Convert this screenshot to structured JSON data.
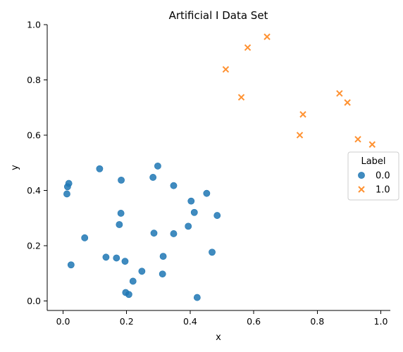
{
  "chart_data": {
    "type": "scatter",
    "title": "Artificial I Data Set",
    "xlabel": "x",
    "ylabel": "y",
    "xlim": [
      -0.05,
      1.03
    ],
    "ylim": [
      -0.035,
      1.0
    ],
    "x_ticks": [
      0.0,
      0.2,
      0.4,
      0.6,
      0.8,
      1.0
    ],
    "x_tick_labels": [
      "0.0",
      "0.2",
      "0.4",
      "0.6",
      "0.8",
      "1.0"
    ],
    "y_ticks": [
      0.0,
      0.2,
      0.4,
      0.6,
      0.8,
      1.0
    ],
    "y_tick_labels": [
      "0.0",
      "0.2",
      "0.4",
      "0.6",
      "0.8",
      "1.0"
    ],
    "grid": false,
    "legend": {
      "title": "Label",
      "placement": "right"
    },
    "series": [
      {
        "name": "0.0",
        "marker": "circle",
        "color": "#1f77b4",
        "points": [
          [
            0.018,
            0.425
          ],
          [
            0.014,
            0.413
          ],
          [
            0.012,
            0.387
          ],
          [
            0.115,
            0.478
          ],
          [
            0.183,
            0.437
          ],
          [
            0.298,
            0.488
          ],
          [
            0.283,
            0.447
          ],
          [
            0.348,
            0.417
          ],
          [
            0.452,
            0.389
          ],
          [
            0.403,
            0.361
          ],
          [
            0.413,
            0.32
          ],
          [
            0.485,
            0.309
          ],
          [
            0.182,
            0.317
          ],
          [
            0.177,
            0.276
          ],
          [
            0.394,
            0.27
          ],
          [
            0.286,
            0.245
          ],
          [
            0.348,
            0.243
          ],
          [
            0.068,
            0.228
          ],
          [
            0.469,
            0.176
          ],
          [
            0.315,
            0.161
          ],
          [
            0.135,
            0.158
          ],
          [
            0.168,
            0.155
          ],
          [
            0.195,
            0.143
          ],
          [
            0.025,
            0.13
          ],
          [
            0.248,
            0.107
          ],
          [
            0.313,
            0.097
          ],
          [
            0.22,
            0.071
          ],
          [
            0.197,
            0.03
          ],
          [
            0.207,
            0.023
          ],
          [
            0.422,
            0.012
          ]
        ]
      },
      {
        "name": "1.0",
        "marker": "x",
        "color": "#ff7f0e",
        "points": [
          [
            0.642,
            0.956
          ],
          [
            0.581,
            0.917
          ],
          [
            0.512,
            0.838
          ],
          [
            0.561,
            0.737
          ],
          [
            0.87,
            0.751
          ],
          [
            0.895,
            0.718
          ],
          [
            0.755,
            0.675
          ],
          [
            0.745,
            0.6
          ],
          [
            0.928,
            0.585
          ],
          [
            0.973,
            0.566
          ]
        ]
      }
    ]
  }
}
